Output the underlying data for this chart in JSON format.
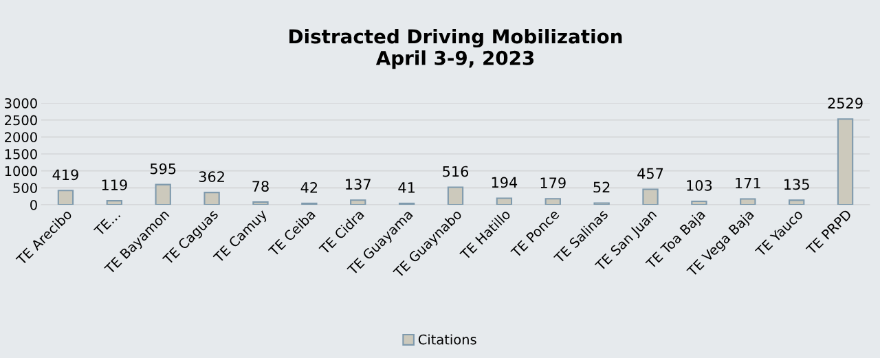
{
  "chart_data": {
    "type": "bar",
    "title": "Distracted Driving Mobilization\nApril 3-9, 2023",
    "categories": [
      "TE Arecibo",
      "TE…",
      "TE Bayamon",
      "TE Caguas",
      "TE Camuy",
      "TE Ceiba",
      "TE Cidra",
      "TE Guayama",
      "TE Guaynabo",
      "TE Hatillo",
      "TE Ponce",
      "TE Salinas",
      "TE San Juan",
      "TE Toa Baja",
      "TE Vega Baja",
      "TE Yauco",
      "TE PRPD"
    ],
    "series": [
      {
        "name": "Citations",
        "color": "#ccc9bc",
        "values": [
          419,
          119,
          595,
          362,
          78,
          42,
          137,
          41,
          516,
          194,
          179,
          52,
          457,
          103,
          171,
          135,
          2529
        ]
      }
    ],
    "ylim": [
      0,
      3000
    ],
    "yticks": [
      0,
      500,
      1000,
      1500,
      2000,
      2500,
      3000
    ],
    "grid": "y",
    "legend": "bottom",
    "data_labels": true
  }
}
